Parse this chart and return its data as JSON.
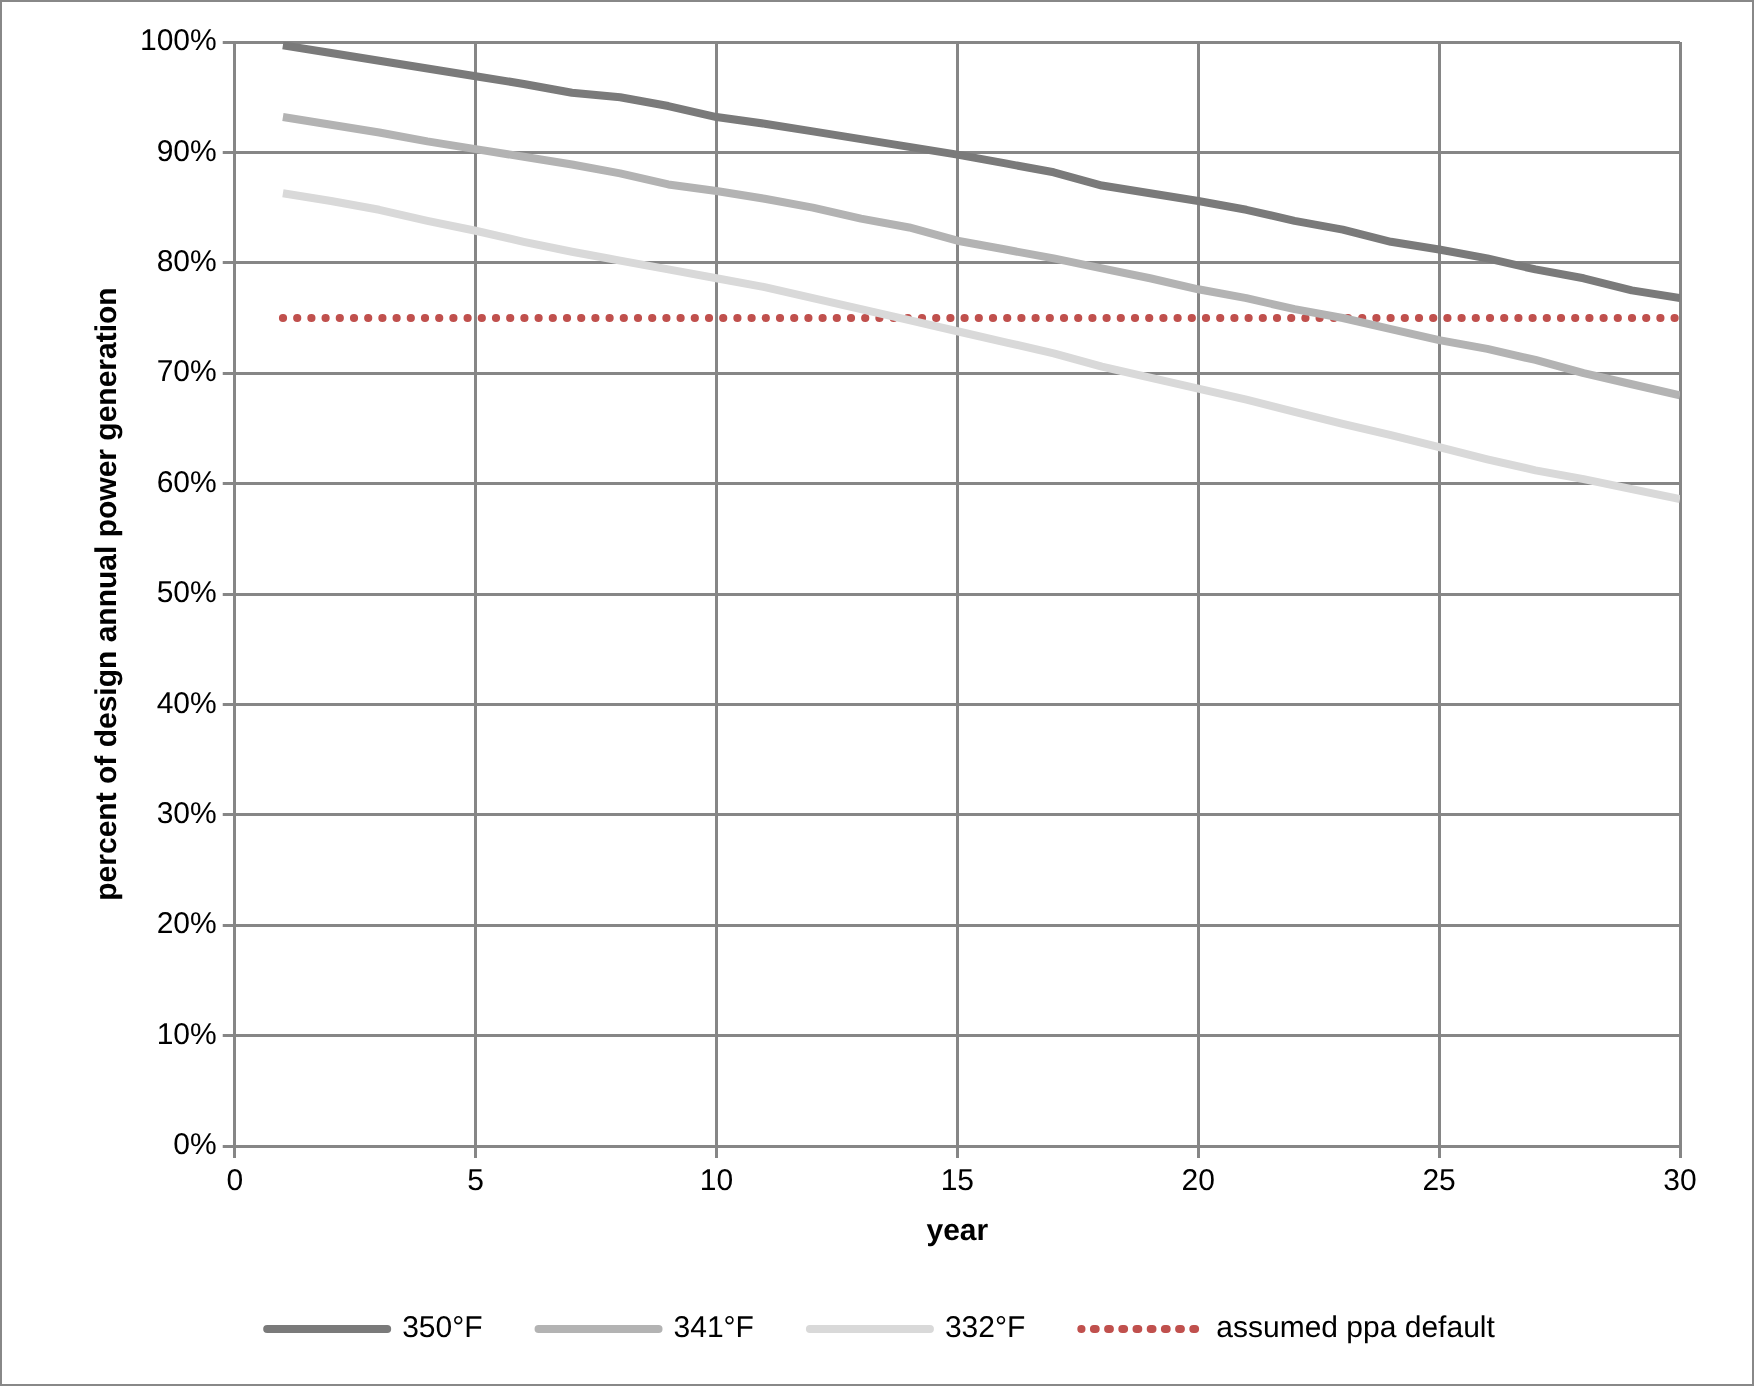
{
  "chart_data": {
    "type": "line",
    "xlabel": "year",
    "ylabel": "percent of design annual power generation",
    "x": [
      1,
      2,
      3,
      4,
      5,
      6,
      7,
      8,
      9,
      10,
      11,
      12,
      13,
      14,
      15,
      16,
      17,
      18,
      19,
      20,
      21,
      22,
      23,
      24,
      25,
      26,
      27,
      28,
      29,
      30
    ],
    "series": [
      {
        "name": "350°F",
        "color": "#7a7a7a",
        "values": [
          99.7,
          99.0,
          98.3,
          97.6,
          96.9,
          96.2,
          95.4,
          95.0,
          94.2,
          93.2,
          92.6,
          91.9,
          91.2,
          90.5,
          89.8,
          89.0,
          88.2,
          87.0,
          86.3,
          85.6,
          84.8,
          83.8,
          83.0,
          81.9,
          81.2,
          80.4,
          79.4,
          78.6,
          77.5,
          76.8
        ]
      },
      {
        "name": "341°F",
        "color": "#b3b3b3",
        "values": [
          93.2,
          92.5,
          91.8,
          91.0,
          90.3,
          89.6,
          88.9,
          88.1,
          87.1,
          86.5,
          85.8,
          85.0,
          84.0,
          83.2,
          82.0,
          81.2,
          80.4,
          79.5,
          78.6,
          77.6,
          76.8,
          75.8,
          75.0,
          74.0,
          73.0,
          72.2,
          71.2,
          70.0,
          69.0,
          68.0
        ]
      },
      {
        "name": "332°F",
        "color": "#d9d9d9",
        "values": [
          86.3,
          85.6,
          84.8,
          83.8,
          82.9,
          81.9,
          81.0,
          80.2,
          79.4,
          78.6,
          77.8,
          76.8,
          75.8,
          74.8,
          73.8,
          72.8,
          71.8,
          70.6,
          69.6,
          68.6,
          67.6,
          66.5,
          65.4,
          64.4,
          63.3,
          62.2,
          61.2,
          60.4,
          59.5,
          58.6
        ]
      },
      {
        "name": "assumed ppa default",
        "color": "#c0504d",
        "line_style": "dotted",
        "values": [
          75,
          75,
          75,
          75,
          75,
          75,
          75,
          75,
          75,
          75,
          75,
          75,
          75,
          75,
          75,
          75,
          75,
          75,
          75,
          75,
          75,
          75,
          75,
          75,
          75,
          75,
          75,
          75,
          75,
          75
        ]
      }
    ],
    "xlim": [
      0,
      30
    ],
    "xticks": [
      0,
      5,
      10,
      15,
      20,
      25,
      30
    ],
    "ylim": [
      0,
      100
    ],
    "yticks": [
      {
        "value": 0,
        "label": "0%"
      },
      {
        "value": 10,
        "label": "10%"
      },
      {
        "value": 20,
        "label": "20%"
      },
      {
        "value": 30,
        "label": "30%"
      },
      {
        "value": 40,
        "label": "40%"
      },
      {
        "value": 50,
        "label": "50%"
      },
      {
        "value": 60,
        "label": "60%"
      },
      {
        "value": 70,
        "label": "70%"
      },
      {
        "value": 80,
        "label": "80%"
      },
      {
        "value": 90,
        "label": "90%"
      },
      {
        "value": 100,
        "label": "100%"
      }
    ],
    "grid": true,
    "legend": "bottom",
    "marker": "none"
  }
}
